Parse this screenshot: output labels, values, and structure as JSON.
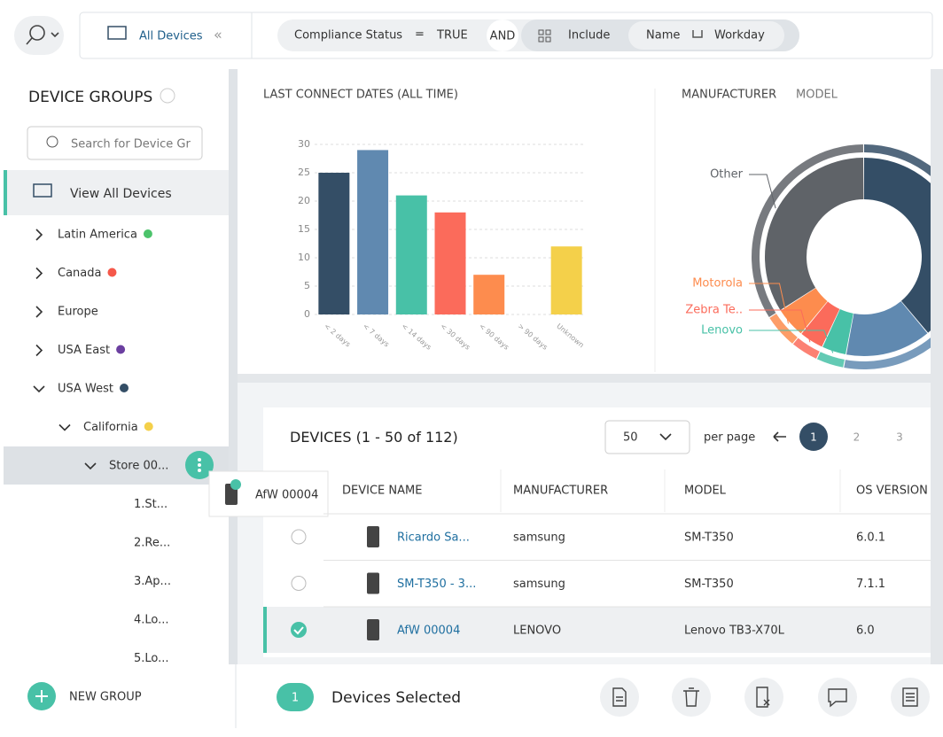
{
  "filter_bar": {
    "scope": "All Devices",
    "filter1": {
      "field": "Compliance Status",
      "operator": "=",
      "value": "TRUE"
    },
    "joiner": "AND",
    "mode": "Include",
    "filter2": {
      "field": "Name",
      "value": "Workday"
    }
  },
  "sidebar": {
    "title": "DEVICE GROUPS",
    "search_placeholder": "Search for Device Gr",
    "view_all": "View All Devices",
    "groups": [
      {
        "name": "Latin America",
        "color": "#4cc36b",
        "level": 0,
        "expanded": false
      },
      {
        "name": "Canada",
        "color": "#f5584a",
        "level": 0,
        "expanded": false
      },
      {
        "name": "Europe",
        "color": null,
        "level": 0,
        "expanded": false
      },
      {
        "name": "USA East",
        "color": "#6b3fa0",
        "level": 0,
        "expanded": false
      },
      {
        "name": "USA West",
        "color": "#344e66",
        "level": 0,
        "expanded": true
      },
      {
        "name": "California",
        "color": "#f4d04a",
        "level": 1,
        "expanded": true
      },
      {
        "name": "Store 00...",
        "color": null,
        "level": 2,
        "expanded": true,
        "selected": true
      },
      {
        "name": "1.St...",
        "color": null,
        "level": 3,
        "expanded": null
      },
      {
        "name": "2.Re...",
        "color": null,
        "level": 3,
        "expanded": null
      },
      {
        "name": "3.Ap...",
        "color": null,
        "level": 3,
        "expanded": null
      },
      {
        "name": "4.Lo...",
        "color": null,
        "level": 3,
        "expanded": null
      },
      {
        "name": "5.Lo...",
        "color": null,
        "level": 3,
        "expanded": null
      }
    ],
    "tooltip": "AfW 00004",
    "new_group": "NEW GROUP"
  },
  "chart_data": [
    {
      "type": "bar",
      "title": "LAST CONNECT DATES (ALL TIME)",
      "categories": [
        "< 2 days",
        "< 7 days",
        "< 14 days",
        "< 30 days",
        "< 90 days",
        "> 90 days",
        "Unknown"
      ],
      "values": [
        25,
        29,
        21,
        18,
        7,
        0,
        12
      ],
      "colors": [
        "#344e66",
        "#6089b0",
        "#48c1a7",
        "#fb6b5b",
        "#fd8c4e",
        "#9aa5b1",
        "#f4d04a"
      ],
      "ylim": [
        0,
        30
      ],
      "yticks": [
        0,
        5,
        10,
        15,
        20,
        25,
        30
      ],
      "grid": true
    },
    {
      "type": "donut",
      "title": "MANUFACTURER",
      "subtitle": "MODEL",
      "categories": [
        null,
        null,
        "Lenovo",
        "Zebra Te..",
        "Motorola",
        "Other"
      ],
      "values": [
        39,
        14,
        4,
        4,
        5,
        34
      ],
      "colors": [
        "#344e66",
        "#6089b0",
        "#48c1a7",
        "#fb6b5b",
        "#fd8c4e",
        "#5f6368"
      ]
    }
  ],
  "devices": {
    "title": "DEVICES",
    "count": "(1 - 50 of 112)",
    "per_page_value": "50",
    "per_page_label": "per page",
    "pages": [
      1,
      2,
      3
    ],
    "current_page": 1,
    "columns": [
      "DEVICE NAME",
      "MANUFACTURER",
      "MODEL",
      "OS VERSION"
    ],
    "rows": [
      [
        "Ricardo Sa...",
        "samsung",
        "SM-T350",
        "6.0.1"
      ],
      [
        "SM-T350 - 3...",
        "samsung",
        "SM-T350",
        "7.1.1"
      ],
      [
        "AfW 00004",
        "LENOVO",
        "Lenovo TB3-X70L",
        "6.0"
      ]
    ],
    "selected": [
      false,
      false,
      true
    ]
  },
  "footer": {
    "selected_count": 1,
    "selected_label": "Devices Selected"
  }
}
